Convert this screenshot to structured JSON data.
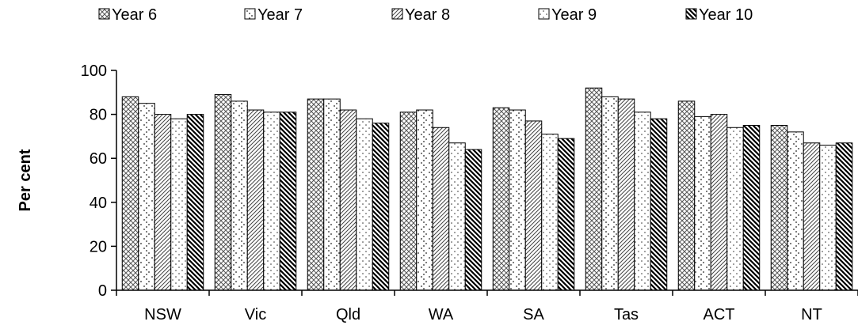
{
  "chart_data": {
    "type": "bar",
    "title": "",
    "xlabel": "",
    "ylabel": "Per cent",
    "ylim": [
      0,
      100
    ],
    "yticks": [
      0,
      20,
      40,
      60,
      80,
      100
    ],
    "grid": false,
    "legend_position": "top",
    "categories": [
      "NSW",
      "Vic",
      "Qld",
      "WA",
      "SA",
      "Tas",
      "ACT",
      "NT"
    ],
    "series": [
      {
        "name": "Year 6",
        "pattern": "crosshatch",
        "values": [
          88,
          89,
          87,
          81,
          83,
          92,
          86,
          75
        ]
      },
      {
        "name": "Year 7",
        "pattern": "zigzag-dots",
        "values": [
          85,
          86,
          87,
          82,
          82,
          88,
          79,
          72
        ]
      },
      {
        "name": "Year 8",
        "pattern": "diagonal-light",
        "values": [
          80,
          82,
          82,
          74,
          77,
          87,
          80,
          67
        ]
      },
      {
        "name": "Year 9",
        "pattern": "dots",
        "values": [
          78,
          81,
          78,
          67,
          71,
          81,
          74,
          66
        ]
      },
      {
        "name": "Year 10",
        "pattern": "diagonal-dark",
        "values": [
          80,
          81,
          76,
          64,
          69,
          78,
          75,
          67
        ]
      }
    ]
  }
}
